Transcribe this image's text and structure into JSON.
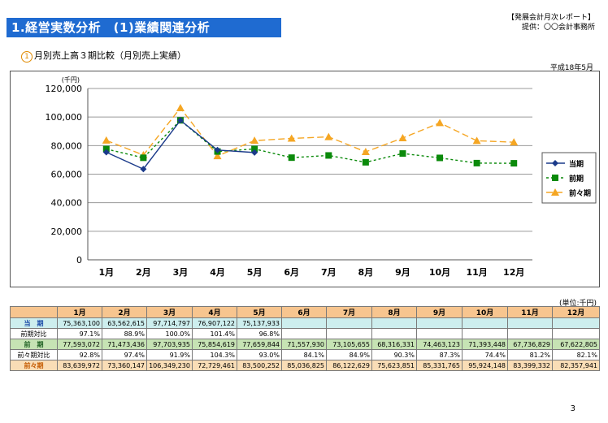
{
  "header": {
    "section_title": "1.経営実数分析　(1)業績関連分析",
    "report_title": "【発展会計月次レポート】",
    "provider": "提供：〇〇会計事務所"
  },
  "subtitle": {
    "number": "1",
    "text": "月別売上高３期比較（月別売上実績）"
  },
  "date": "平成18年5月",
  "unit_label": "(単位:千円)",
  "page_number": "3",
  "colors": {
    "title_bg": "#1f6bd1",
    "current": "#1a3a8a",
    "previous": "#0b8a0b",
    "before_previous": "#f5a623"
  },
  "chart_data": {
    "type": "line",
    "ylabel": "(千円)",
    "ylim": [
      0,
      120000
    ],
    "yticks": [
      "0",
      "20,000",
      "40,000",
      "60,000",
      "80,000",
      "100,000",
      "120,000"
    ],
    "categories": [
      "1月",
      "2月",
      "3月",
      "4月",
      "5月",
      "6月",
      "7月",
      "8月",
      "9月",
      "10月",
      "11月",
      "12月"
    ],
    "legend_position": "right",
    "series": [
      {
        "name": "当期",
        "color": "#1a3a8a",
        "values": [
          75363,
          63563,
          97715,
          76907,
          75138,
          null,
          null,
          null,
          null,
          null,
          null,
          null
        ]
      },
      {
        "name": "前期",
        "color": "#0b8a0b",
        "values": [
          77593,
          71473,
          97704,
          75855,
          77660,
          71558,
          73106,
          68316,
          74463,
          71393,
          67737,
          67623
        ]
      },
      {
        "name": "前々期",
        "color": "#f5a623",
        "values": [
          83640,
          73360,
          106349,
          72729,
          83500,
          85037,
          86123,
          75624,
          85332,
          95924,
          83399,
          82358
        ]
      }
    ]
  },
  "table": {
    "months": [
      "1月",
      "2月",
      "3月",
      "4月",
      "5月",
      "6月",
      "7月",
      "8月",
      "9月",
      "10月",
      "11月",
      "12月"
    ],
    "rows": [
      {
        "label": "当　期",
        "cells": [
          "75,363,100",
          "63,562,615",
          "97,714,797",
          "76,907,122",
          "75,137,933",
          "",
          "",
          "",
          "",
          "",
          "",
          ""
        ]
      },
      {
        "label": "前期対比",
        "cells": [
          "97.1%",
          "88.9%",
          "100.0%",
          "101.4%",
          "96.8%",
          "",
          "",
          "",
          "",
          "",
          "",
          ""
        ]
      },
      {
        "label": "前　期",
        "cells": [
          "77,593,072",
          "71,473,436",
          "97,703,935",
          "75,854,619",
          "77,659,844",
          "71,557,930",
          "73,105,655",
          "68,316,331",
          "74,463,123",
          "71,393,448",
          "67,736,829",
          "67,622,805"
        ]
      },
      {
        "label": "前々期対比",
        "cells": [
          "92.8%",
          "97.4%",
          "91.9%",
          "104.3%",
          "93.0%",
          "84.1%",
          "84.9%",
          "90.3%",
          "87.3%",
          "74.4%",
          "81.2%",
          "82.1%"
        ]
      },
      {
        "label": "前々期",
        "cells": [
          "83,639,972",
          "73,360,147",
          "106,349,230",
          "72,729,461",
          "83,500,252",
          "85,036,825",
          "86,122,629",
          "75,623,851",
          "85,331,765",
          "95,924,148",
          "83,399,332",
          "82,357,941"
        ]
      }
    ]
  }
}
